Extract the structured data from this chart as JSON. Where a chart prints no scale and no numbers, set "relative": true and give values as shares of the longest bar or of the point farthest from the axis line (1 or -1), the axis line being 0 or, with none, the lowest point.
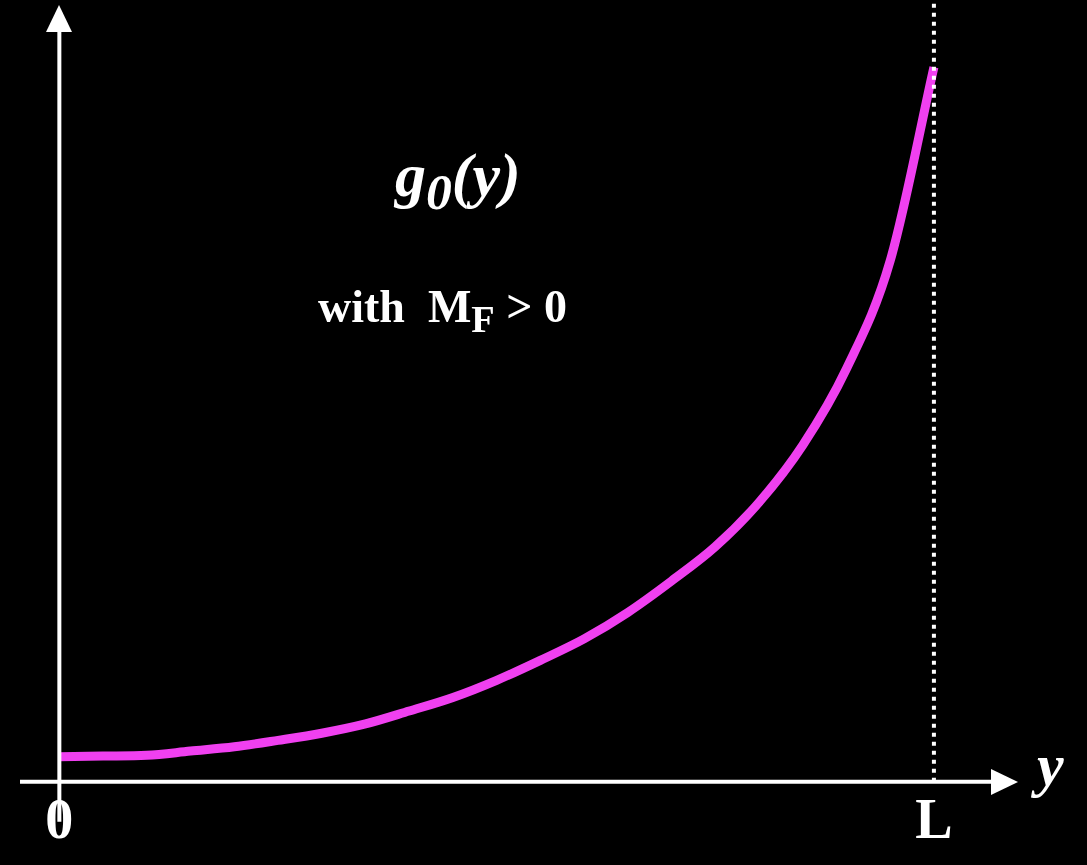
{
  "chart_data": {
    "type": "line",
    "relative": true,
    "xlabel": "y",
    "annotations": [
      "g$_{0}$(y)",
      "with  M$_{F}$ > 0"
    ],
    "categories": [
      "0",
      null,
      null,
      null,
      null,
      null,
      null,
      null,
      null,
      null,
      null,
      null,
      null,
      null,
      null,
      null,
      null,
      null,
      null,
      null,
      "L"
    ],
    "series": [
      {
        "color": "#f040f0",
        "values": [
          0.035,
          0.036,
          0.037,
          0.043,
          0.049,
          0.058,
          0.068,
          0.081,
          0.099,
          0.118,
          0.142,
          0.17,
          0.2,
          0.237,
          0.281,
          0.329,
          0.391,
          0.471,
          0.578,
          0.729,
          1.0
        ]
      }
    ],
    "ref_lines": [
      {
        "axis": "x",
        "value": "L",
        "color": "#ffffff",
        "line_style": "dotted"
      }
    ],
    "grid": false,
    "legend": false,
    "marker": "none",
    "line_style": "solid"
  }
}
